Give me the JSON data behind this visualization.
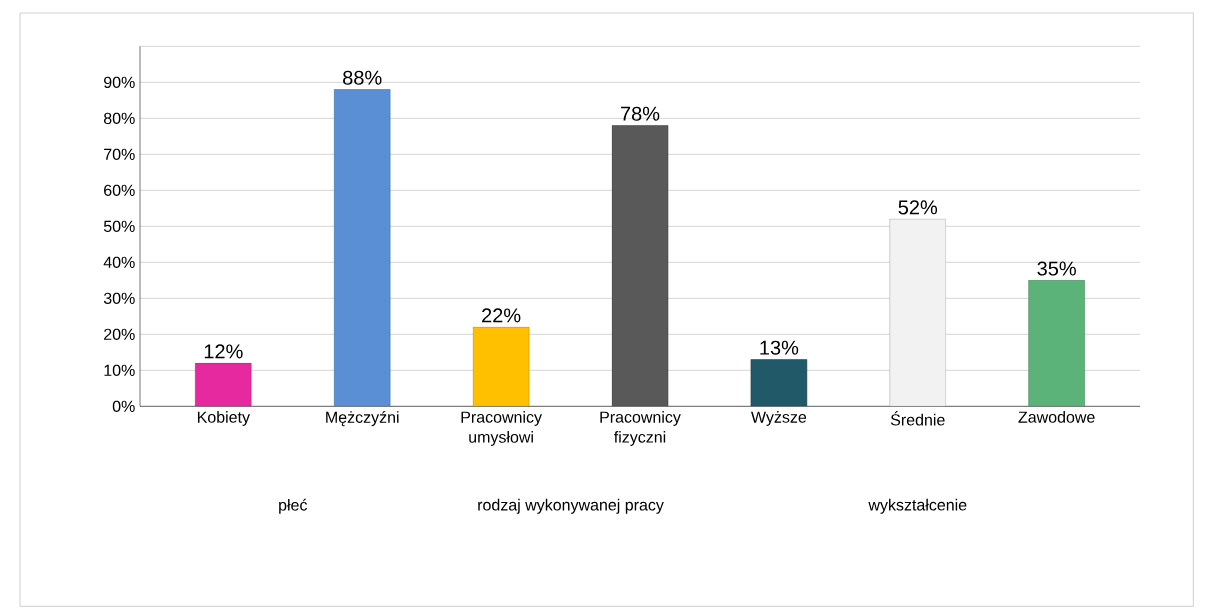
{
  "chart_data": {
    "type": "bar",
    "categories": [
      "Kobiety",
      "Mężczyźni",
      "Pracownicy umysłowi",
      "Pracownicy fizyczni",
      "Wyższe",
      "Średnie",
      "Zawodowe"
    ],
    "values": [
      12,
      88,
      22,
      78,
      13,
      52,
      35
    ],
    "value_labels": [
      "12%",
      "88%",
      "22%",
      "78%",
      "13%",
      "52%",
      "35%"
    ],
    "colors": [
      "#e6299f",
      "#5a8fd6",
      "#ffc000",
      "#595959",
      "#215968",
      "#f2f2f2",
      "#5bb37a"
    ],
    "ylim": [
      0,
      100
    ],
    "yticks": [
      {
        "value": 0,
        "label": "0%"
      },
      {
        "value": 10,
        "label": "10%"
      },
      {
        "value": 20,
        "label": "20%"
      },
      {
        "value": 30,
        "label": "30%"
      },
      {
        "value": 40,
        "label": "40%"
      },
      {
        "value": 50,
        "label": "50%"
      },
      {
        "value": 60,
        "label": "60%"
      },
      {
        "value": 70,
        "label": "70%"
      },
      {
        "value": 80,
        "label": "80%"
      },
      {
        "value": 90,
        "label": "90%"
      },
      {
        "value": 100,
        "label": null
      }
    ],
    "grid": "y",
    "annotations": [
      "płeć",
      "rodzaj wykonywanej pracy",
      "wykształcenie"
    ]
  }
}
